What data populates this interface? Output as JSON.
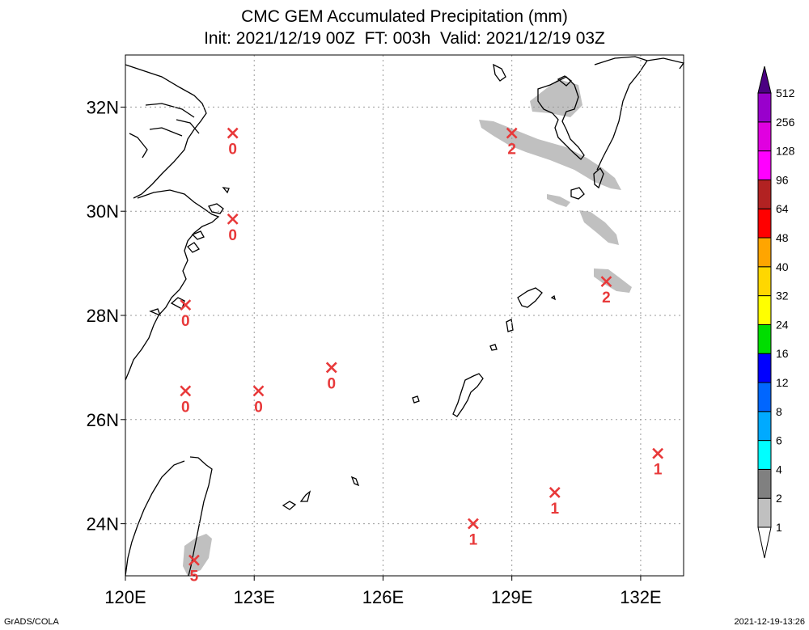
{
  "title": "CMC GEM Accumulated Precipitation (mm)",
  "subtitle": "Init: 2021/12/19 00Z  FT: 003h  Valid: 2021/12/19 03Z",
  "map": {
    "lon_range": [
      120,
      133
    ],
    "lat_range": [
      23,
      33
    ],
    "lon_ticks": [
      {
        "value": 120,
        "label": "120E"
      },
      {
        "value": 123,
        "label": "123E"
      },
      {
        "value": 126,
        "label": "126E"
      },
      {
        "value": 129,
        "label": "129E"
      },
      {
        "value": 132,
        "label": "132E"
      }
    ],
    "lat_ticks": [
      {
        "value": 24,
        "label": "24N"
      },
      {
        "value": 26,
        "label": "26N"
      },
      {
        "value": 28,
        "label": "28N"
      },
      {
        "value": 30,
        "label": "30N"
      },
      {
        "value": 32,
        "label": "32N"
      }
    ],
    "grid": true,
    "stations": [
      {
        "lon": 122.5,
        "lat": 31.5,
        "value": "0"
      },
      {
        "lon": 122.5,
        "lat": 29.85,
        "value": "0"
      },
      {
        "lon": 121.4,
        "lat": 28.2,
        "value": "0"
      },
      {
        "lon": 121.4,
        "lat": 26.55,
        "value": "0"
      },
      {
        "lon": 123.1,
        "lat": 26.55,
        "value": "0"
      },
      {
        "lon": 124.8,
        "lat": 27.0,
        "value": "0"
      },
      {
        "lon": 129.0,
        "lat": 31.5,
        "value": "2"
      },
      {
        "lon": 131.2,
        "lat": 28.65,
        "value": "2"
      },
      {
        "lon": 128.1,
        "lat": 24.0,
        "value": "1"
      },
      {
        "lon": 130.0,
        "lat": 24.6,
        "value": "1"
      },
      {
        "lon": 132.4,
        "lat": 25.35,
        "value": "1"
      },
      {
        "lon": 121.6,
        "lat": 23.3,
        "value": "5"
      }
    ],
    "precip_color": "#c0c0c0",
    "marker_color": "#e8393a"
  },
  "colorbar": {
    "levels": [
      "1",
      "2",
      "4",
      "6",
      "8",
      "12",
      "16",
      "24",
      "32",
      "40",
      "48",
      "64",
      "96",
      "128",
      "256",
      "512"
    ],
    "colors": [
      "#c0c0c0",
      "#808080",
      "#00ffff",
      "#00aaff",
      "#0066ff",
      "#0000ff",
      "#00dd00",
      "#ffff00",
      "#ffd700",
      "#ffa500",
      "#ff0000",
      "#b22222",
      "#ff00ff",
      "#e000e0",
      "#9900cc",
      "#800099",
      "#4b0082"
    ]
  },
  "footer": {
    "left": "GrADS/COLA",
    "right": "2021-12-19-13:26"
  }
}
